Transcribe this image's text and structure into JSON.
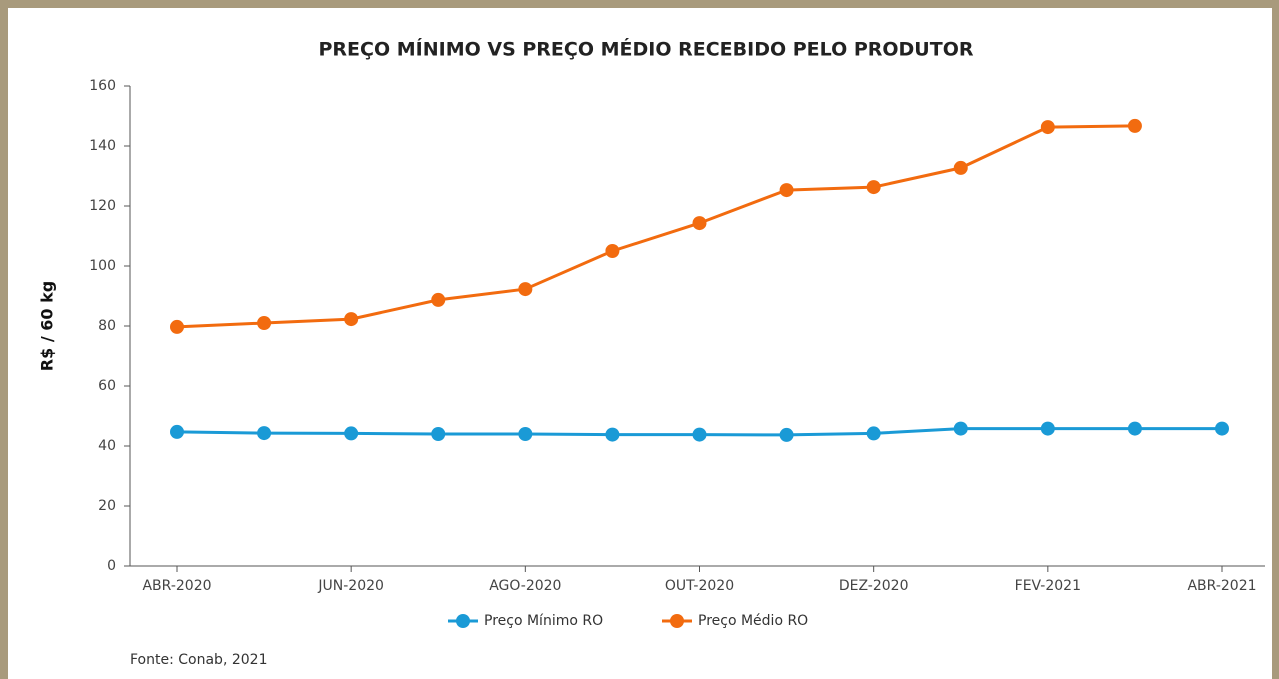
{
  "chart_data": {
    "type": "line",
    "title": "PREÇO MÍNIMO VS PREÇO MÉDIO RECEBIDO PELO PRODUTOR",
    "y_label": "R$ / 60 kg",
    "source": "Fonte: Conab, 2021",
    "categories": [
      "ABR-2020",
      null,
      "JUN-2020",
      null,
      "AGO-2020",
      null,
      "OUT-2020",
      null,
      "DEZ-2020",
      null,
      "FEV-2021",
      null,
      "ABR-2021"
    ],
    "series": [
      {
        "name": "Preço Mínimo RO",
        "color": "#1a9ad6",
        "values": [
          44.7,
          44.3,
          44.2,
          44.0,
          44.0,
          43.8,
          43.8,
          43.7,
          44.2,
          45.8,
          45.8,
          45.8,
          45.8
        ]
      },
      {
        "name": "Preço Médio RO",
        "color": "#f26b0f",
        "values": [
          79.7,
          81.0,
          82.3,
          88.7,
          92.3,
          105.0,
          114.3,
          125.3,
          126.3,
          132.7,
          146.3,
          146.7,
          null
        ]
      }
    ],
    "ylim": [
      0,
      160
    ],
    "yticks": [
      0,
      20,
      40,
      60,
      80,
      100,
      120,
      140,
      160
    ],
    "grid": false,
    "legend": "bottom"
  }
}
